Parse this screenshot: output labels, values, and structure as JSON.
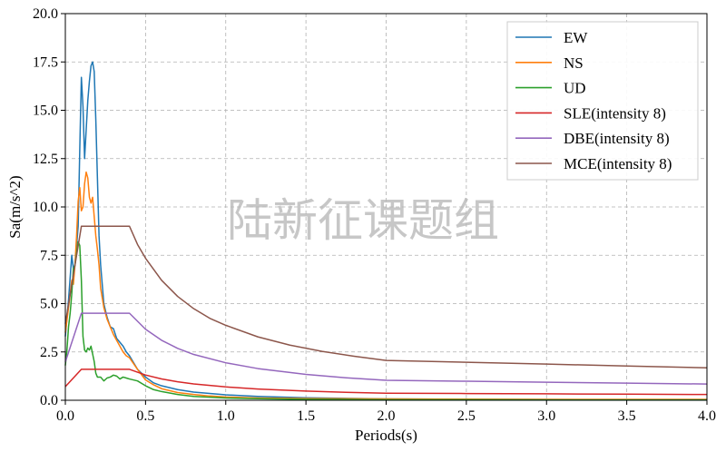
{
  "chart_data": {
    "type": "line",
    "title": "",
    "xlabel": "Periods(s)",
    "ylabel": "Sa(m/s^2)",
    "xlim": [
      0.0,
      4.0
    ],
    "ylim": [
      0.0,
      20.0
    ],
    "xticks": [
      "0.0",
      "0.5",
      "1.0",
      "1.5",
      "2.0",
      "2.5",
      "3.0",
      "3.5",
      "4.0"
    ],
    "yticks": [
      "0.0",
      "2.5",
      "5.0",
      "7.5",
      "10.0",
      "12.5",
      "15.0",
      "17.5",
      "20.0"
    ],
    "grid": true,
    "legend_position": "top-right",
    "watermark": "陆新征课题组",
    "series": [
      {
        "name": "EW",
        "color": "#1f77b4",
        "x": [
          0.0,
          0.02,
          0.04,
          0.05,
          0.06,
          0.08,
          0.09,
          0.1,
          0.11,
          0.12,
          0.13,
          0.14,
          0.15,
          0.16,
          0.17,
          0.18,
          0.19,
          0.2,
          0.21,
          0.22,
          0.24,
          0.26,
          0.28,
          0.3,
          0.32,
          0.34,
          0.36,
          0.38,
          0.4,
          0.45,
          0.5,
          0.55,
          0.6,
          0.7,
          0.8,
          0.9,
          1.0,
          1.2,
          1.5,
          2.0,
          2.5,
          3.0,
          3.5,
          4.0
        ],
        "y": [
          3.3,
          5.2,
          7.5,
          6.8,
          7.0,
          9.0,
          13.0,
          16.7,
          15.2,
          12.5,
          14.0,
          15.5,
          16.5,
          17.3,
          17.5,
          17.0,
          14.5,
          11.5,
          8.5,
          7.0,
          5.0,
          4.3,
          3.8,
          3.7,
          3.2,
          3.0,
          2.8,
          2.5,
          2.3,
          1.6,
          1.2,
          0.9,
          0.75,
          0.55,
          0.42,
          0.35,
          0.28,
          0.2,
          0.13,
          0.07,
          0.05,
          0.04,
          0.03,
          0.03
        ]
      },
      {
        "name": "NS",
        "color": "#ff7f0e",
        "x": [
          0.0,
          0.02,
          0.04,
          0.05,
          0.06,
          0.07,
          0.08,
          0.09,
          0.1,
          0.11,
          0.12,
          0.13,
          0.14,
          0.15,
          0.16,
          0.17,
          0.18,
          0.19,
          0.2,
          0.21,
          0.22,
          0.24,
          0.26,
          0.28,
          0.3,
          0.32,
          0.34,
          0.36,
          0.38,
          0.4,
          0.45,
          0.5,
          0.55,
          0.6,
          0.7,
          0.8,
          0.9,
          1.0,
          1.2,
          1.5,
          2.0,
          2.5,
          3.0,
          3.5,
          4.0
        ],
        "y": [
          3.5,
          4.8,
          6.2,
          6.0,
          7.0,
          8.5,
          10.3,
          11.0,
          9.8,
          10.0,
          11.2,
          11.8,
          11.5,
          10.5,
          10.2,
          10.5,
          9.5,
          8.5,
          7.8,
          7.0,
          5.8,
          4.8,
          4.2,
          3.8,
          3.4,
          3.1,
          2.8,
          2.5,
          2.3,
          2.2,
          1.6,
          1.05,
          0.8,
          0.6,
          0.4,
          0.3,
          0.22,
          0.17,
          0.12,
          0.09,
          0.07,
          0.06,
          0.05,
          0.05,
          0.05
        ]
      },
      {
        "name": "UD",
        "color": "#2ca02c",
        "x": [
          0.0,
          0.01,
          0.02,
          0.03,
          0.04,
          0.05,
          0.06,
          0.07,
          0.08,
          0.09,
          0.1,
          0.11,
          0.12,
          0.13,
          0.14,
          0.15,
          0.16,
          0.17,
          0.18,
          0.19,
          0.2,
          0.22,
          0.24,
          0.26,
          0.28,
          0.3,
          0.32,
          0.34,
          0.36,
          0.38,
          0.4,
          0.45,
          0.5,
          0.55,
          0.6,
          0.7,
          0.8,
          1.0,
          1.2,
          1.5,
          2.0,
          2.5,
          3.0,
          3.5,
          4.0
        ],
        "y": [
          1.8,
          2.6,
          3.8,
          4.5,
          5.5,
          6.8,
          7.0,
          7.6,
          8.2,
          8.0,
          6.2,
          3.3,
          2.6,
          2.5,
          2.7,
          2.6,
          2.8,
          2.4,
          2.0,
          1.4,
          1.2,
          1.2,
          1.0,
          1.15,
          1.2,
          1.3,
          1.25,
          1.1,
          1.2,
          1.15,
          1.1,
          1.0,
          0.75,
          0.55,
          0.45,
          0.3,
          0.2,
          0.12,
          0.08,
          0.05,
          0.03,
          0.03,
          0.02,
          0.02,
          0.02
        ]
      },
      {
        "name": "SLE(intensity 8)",
        "color": "#d62728",
        "x": [
          0.0,
          0.1,
          0.4,
          0.5,
          0.6,
          0.7,
          0.8,
          1.0,
          1.2,
          1.5,
          1.75,
          2.0,
          2.5,
          3.0,
          3.5,
          4.0
        ],
        "y": [
          0.704,
          1.6,
          1.6,
          1.306,
          1.103,
          0.956,
          0.844,
          0.69,
          0.583,
          0.475,
          0.413,
          0.366,
          0.349,
          0.332,
          0.315,
          0.298
        ]
      },
      {
        "name": "DBE(intensity 8)",
        "color": "#9467bd",
        "x": [
          0.0,
          0.1,
          0.4,
          0.5,
          0.6,
          0.7,
          0.8,
          1.0,
          1.2,
          1.5,
          1.75,
          2.0,
          2.5,
          3.0,
          3.5,
          4.0
        ],
        "y": [
          1.98,
          4.5,
          4.5,
          3.673,
          3.103,
          2.687,
          2.37,
          1.94,
          1.64,
          1.337,
          1.162,
          1.03,
          0.983,
          0.935,
          0.887,
          0.839
        ]
      },
      {
        "name": "MCE(intensity 8)",
        "color": "#8c564b",
        "x": [
          0.0,
          0.1,
          0.4,
          0.45,
          0.5,
          0.6,
          0.7,
          0.8,
          0.9,
          1.0,
          1.2,
          1.4,
          1.6,
          1.8,
          2.0,
          2.5,
          3.0,
          3.5,
          4.0
        ],
        "y": [
          3.96,
          9.0,
          9.0,
          8.06,
          7.346,
          6.206,
          5.373,
          4.74,
          4.242,
          3.879,
          3.281,
          2.853,
          2.53,
          2.278,
          2.06,
          1.965,
          1.87,
          1.775,
          1.68
        ]
      }
    ]
  }
}
